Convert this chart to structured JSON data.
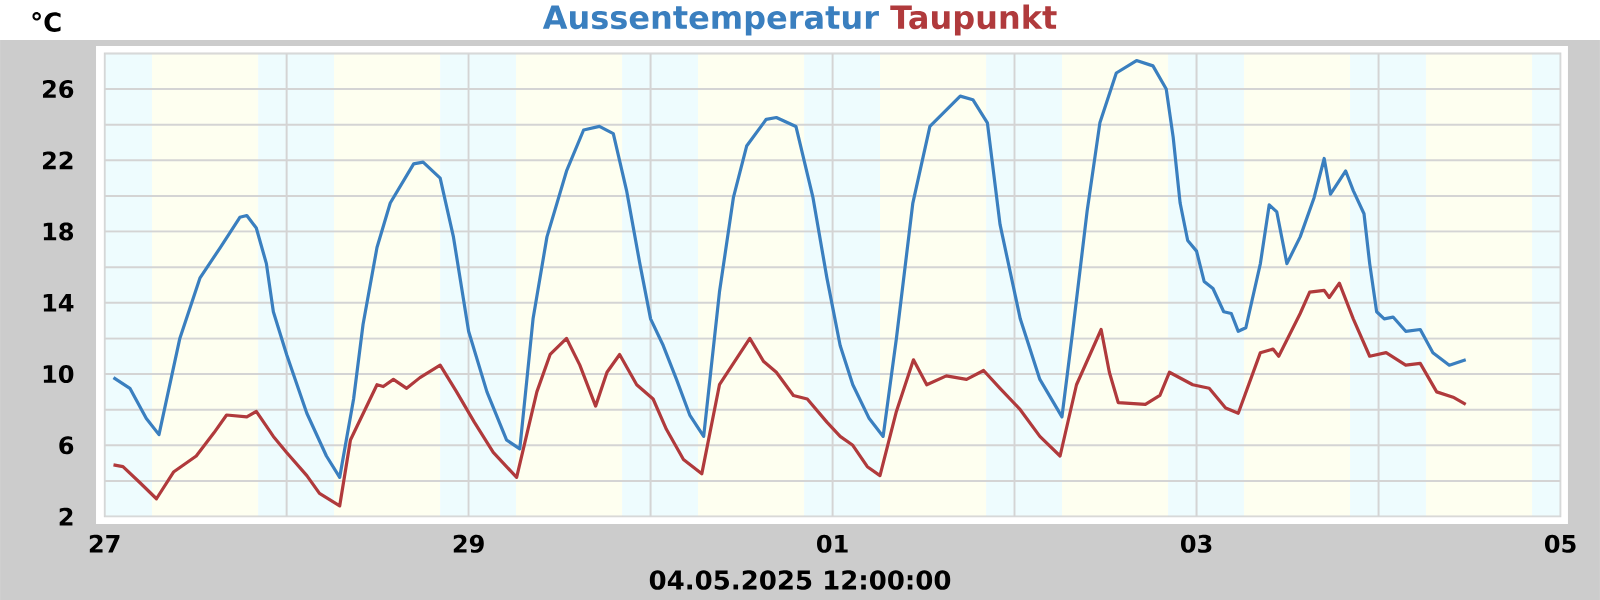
{
  "chart_data": {
    "type": "line",
    "ylabel": "°C",
    "annotations": [
      "04.05.2025 12:00:00"
    ],
    "xlim": [
      "2025-04-27",
      "2025-05-05"
    ],
    "xticks": [
      {
        "value": "2025-04-27",
        "label": "27"
      },
      {
        "value": "2025-04-28",
        "label": null
      },
      {
        "value": "2025-04-29",
        "label": "29"
      },
      {
        "value": "2025-04-30",
        "label": null
      },
      {
        "value": "2025-05-01",
        "label": "01"
      },
      {
        "value": "2025-05-02",
        "label": null
      },
      {
        "value": "2025-05-03",
        "label": "03"
      },
      {
        "value": "2025-05-04",
        "label": null
      },
      {
        "value": "2025-05-05",
        "label": "05"
      }
    ],
    "ylim": [
      2,
      28
    ],
    "yticks": [
      2,
      {
        "value": 4,
        "label": null
      },
      6,
      {
        "value": 8,
        "label": null
      },
      10,
      {
        "value": 12,
        "label": null
      },
      14,
      {
        "value": 16,
        "label": null
      },
      18,
      {
        "value": 20,
        "label": null
      },
      22,
      {
        "value": 24,
        "label": null
      },
      26,
      {
        "value": 28,
        "label": null
      }
    ],
    "grid": true,
    "bands": [
      {
        "axis": "x",
        "from": "2025-04-27T00:00",
        "to": "2025-04-27T06:15",
        "color": "#eefcfe"
      },
      {
        "axis": "x",
        "from": "2025-04-27T06:15",
        "to": "2025-04-27T20:15",
        "color": "#fefff0"
      },
      {
        "axis": "x",
        "from": "2025-04-27T20:15",
        "to": "2025-04-28T06:15",
        "color": "#eefcfe"
      },
      {
        "axis": "x",
        "from": "2025-04-28T06:15",
        "to": "2025-04-28T20:15",
        "color": "#fefff0"
      },
      {
        "axis": "x",
        "from": "2025-04-28T20:15",
        "to": "2025-04-29T06:15",
        "color": "#eefcfe"
      },
      {
        "axis": "x",
        "from": "2025-04-29T06:15",
        "to": "2025-04-29T20:15",
        "color": "#fefff0"
      },
      {
        "axis": "x",
        "from": "2025-04-29T20:15",
        "to": "2025-04-30T06:15",
        "color": "#eefcfe"
      },
      {
        "axis": "x",
        "from": "2025-04-30T06:15",
        "to": "2025-04-30T20:15",
        "color": "#fefff0"
      },
      {
        "axis": "x",
        "from": "2025-04-30T20:15",
        "to": "2025-05-01T06:15",
        "color": "#eefcfe"
      },
      {
        "axis": "x",
        "from": "2025-05-01T06:15",
        "to": "2025-05-01T20:15",
        "color": "#fefff0"
      },
      {
        "axis": "x",
        "from": "2025-05-01T20:15",
        "to": "2025-05-02T06:15",
        "color": "#eefcfe"
      },
      {
        "axis": "x",
        "from": "2025-05-02T06:15",
        "to": "2025-05-02T20:15",
        "color": "#fefff0"
      },
      {
        "axis": "x",
        "from": "2025-05-02T20:15",
        "to": "2025-05-03T06:15",
        "color": "#eefcfe"
      },
      {
        "axis": "x",
        "from": "2025-05-03T06:15",
        "to": "2025-05-03T20:15",
        "color": "#fefff0"
      },
      {
        "axis": "x",
        "from": "2025-05-03T20:15",
        "to": "2025-05-04T06:15",
        "color": "#eefcfe"
      },
      {
        "axis": "x",
        "from": "2025-05-04T06:15",
        "to": "2025-05-04T20:15",
        "color": "#fefff0"
      },
      {
        "axis": "x",
        "from": "2025-05-04T20:15",
        "to": "2025-05-05T00:00",
        "color": "#eefcfe"
      }
    ],
    "series": [
      {
        "name": "Aussentemperatur",
        "color": "#3a7fbf",
        "x": [
          "2025-04-27T01:10",
          "2025-04-27T03:20",
          "2025-04-27T05:30",
          "2025-04-27T07:10",
          "2025-04-27T09:55",
          "2025-04-27T12:35",
          "2025-04-27T15:15",
          "2025-04-27T17:50",
          "2025-04-27T18:45",
          "2025-04-27T20:00",
          "2025-04-27T21:20",
          "2025-04-27T22:15",
          "2025-04-28T00:00",
          "2025-04-28T02:40",
          "2025-04-28T05:15",
          "2025-04-28T07:00",
          "2025-04-28T08:50",
          "2025-04-28T10:05",
          "2025-04-28T11:55",
          "2025-04-28T13:40",
          "2025-04-28T16:45",
          "2025-04-28T18:00",
          "2025-04-28T20:15",
          "2025-04-28T22:00",
          "2025-04-29T00:00",
          "2025-04-29T02:25",
          "2025-04-29T05:00",
          "2025-04-29T06:45",
          "2025-04-29T08:30",
          "2025-04-29T10:20",
          "2025-04-29T12:55",
          "2025-04-29T15:10",
          "2025-04-29T17:15",
          "2025-04-29T19:05",
          "2025-04-29T20:50",
          "2025-04-29T22:35",
          "2025-04-30T00:00",
          "2025-04-30T01:40",
          "2025-04-30T03:25",
          "2025-04-30T05:10",
          "2025-04-30T07:00",
          "2025-04-30T09:05",
          "2025-04-30T10:55",
          "2025-04-30T12:40",
          "2025-04-30T15:15",
          "2025-04-30T16:35",
          "2025-04-30T19:10",
          "2025-04-30T21:25",
          "2025-04-30T23:15",
          "2025-05-01T01:00",
          "2025-05-01T02:40",
          "2025-05-01T04:50",
          "2025-05-01T06:40",
          "2025-05-01T08:25",
          "2025-05-01T10:35",
          "2025-05-01T12:50",
          "2025-05-01T16:50",
          "2025-05-01T18:30",
          "2025-05-01T20:25",
          "2025-05-01T22:05",
          "2025-05-02T00:45",
          "2025-05-02T03:20",
          "2025-05-02T06:15",
          "2025-05-02T07:40",
          "2025-05-02T09:35",
          "2025-05-02T11:15",
          "2025-05-02T13:25",
          "2025-05-02T16:05",
          "2025-05-02T18:15",
          "2025-05-02T20:00",
          "2025-05-02T20:55",
          "2025-05-02T21:50",
          "2025-05-02T22:50",
          "2025-05-03T00:00",
          "2025-05-03T01:00",
          "2025-05-03T02:10",
          "2025-05-03T03:35",
          "2025-05-03T04:35",
          "2025-05-03T05:30",
          "2025-05-03T06:30",
          "2025-05-03T08:25",
          "2025-05-03T09:35",
          "2025-05-03T10:35",
          "2025-05-03T11:55",
          "2025-05-03T13:40",
          "2025-05-03T15:30",
          "2025-05-03T16:50",
          "2025-05-03T17:40",
          "2025-05-03T19:40",
          "2025-05-03T20:40",
          "2025-05-03T22:05",
          "2025-05-03T22:50",
          "2025-05-03T23:45",
          "2025-05-04T00:45",
          "2025-05-04T01:55",
          "2025-05-04T03:35",
          "2025-05-04T05:30",
          "2025-05-04T07:10",
          "2025-05-04T09:20",
          "2025-05-04T11:30"
        ],
        "values": [
          9.8,
          9.2,
          7.5,
          6.6,
          12.0,
          15.4,
          17.1,
          18.8,
          18.9,
          18.2,
          16.2,
          13.5,
          11.1,
          7.8,
          5.4,
          4.2,
          8.6,
          12.8,
          17.1,
          19.6,
          21.8,
          21.9,
          21.0,
          17.7,
          12.4,
          9.0,
          6.3,
          5.8,
          13.1,
          17.7,
          21.4,
          23.7,
          23.9,
          23.5,
          20.3,
          16.2,
          13.1,
          11.6,
          9.7,
          7.7,
          6.5,
          14.6,
          19.9,
          22.8,
          24.3,
          24.4,
          23.9,
          19.9,
          15.4,
          11.6,
          9.4,
          7.5,
          6.5,
          12.0,
          19.6,
          23.9,
          25.6,
          25.4,
          24.1,
          18.4,
          13.1,
          9.7,
          7.6,
          12.4,
          19.2,
          24.1,
          26.9,
          27.6,
          27.3,
          26.0,
          23.3,
          19.6,
          17.5,
          16.9,
          15.2,
          14.8,
          13.5,
          13.4,
          12.4,
          12.6,
          16.2,
          19.5,
          19.1,
          16.2,
          17.7,
          19.9,
          22.1,
          20.1,
          21.4,
          20.3,
          19.0,
          16.2,
          13.5,
          13.1,
          13.2,
          12.4,
          12.5,
          11.2,
          10.5,
          10.8
        ]
      },
      {
        "name": "Taupunkt",
        "color": "#b03a3c",
        "x": [
          "2025-04-27T01:10",
          "2025-04-27T02:25",
          "2025-04-27T04:40",
          "2025-04-27T06:50",
          "2025-04-27T09:05",
          "2025-04-27T12:05",
          "2025-04-27T14:25",
          "2025-04-27T16:05",
          "2025-04-27T18:45",
          "2025-04-27T20:00",
          "2025-04-27T22:15",
          "2025-04-28T00:00",
          "2025-04-28T02:40",
          "2025-04-28T04:20",
          "2025-04-28T07:00",
          "2025-04-28T08:25",
          "2025-04-28T11:55",
          "2025-04-28T12:45",
          "2025-04-28T14:05",
          "2025-04-28T15:50",
          "2025-04-28T17:35",
          "2025-04-28T20:15",
          "2025-04-28T22:25",
          "2025-04-29T00:45",
          "2025-04-29T03:15",
          "2025-04-29T06:20",
          "2025-04-29T09:00",
          "2025-04-29T10:45",
          "2025-04-29T12:55",
          "2025-04-29T14:40",
          "2025-04-29T16:45",
          "2025-04-29T18:15",
          "2025-04-29T19:55",
          "2025-04-29T22:10",
          "2025-04-30T00:20",
          "2025-04-30T02:05",
          "2025-04-30T04:20",
          "2025-04-30T06:45",
          "2025-04-30T09:05",
          "2025-04-30T13:05",
          "2025-04-30T14:55",
          "2025-04-30T16:35",
          "2025-04-30T18:50",
          "2025-04-30T20:40",
          "2025-04-30T23:15",
          "2025-05-01T01:00",
          "2025-05-01T02:40",
          "2025-05-01T04:35",
          "2025-05-01T06:15",
          "2025-05-01T08:25",
          "2025-05-01T10:40",
          "2025-05-01T12:25",
          "2025-05-01T15:00",
          "2025-05-01T17:40",
          "2025-05-01T19:55",
          "2025-05-01T22:05",
          "2025-05-02T00:45",
          "2025-05-02T03:20",
          "2025-05-02T06:00",
          "2025-05-02T08:10",
          "2025-05-02T11:25",
          "2025-05-02T12:30",
          "2025-05-02T13:40",
          "2025-05-02T17:15",
          "2025-05-02T19:10",
          "2025-05-02T20:25",
          "2025-05-02T23:30",
          "2025-05-03T01:40",
          "2025-05-03T03:50",
          "2025-05-03T05:30",
          "2025-05-03T08:25",
          "2025-05-03T10:05",
          "2025-05-03T10:50",
          "2025-05-03T13:40",
          "2025-05-03T14:55",
          "2025-05-03T16:50",
          "2025-05-03T17:30",
          "2025-05-03T18:50",
          "2025-05-03T20:40",
          "2025-05-03T22:50",
          "2025-05-04T01:00",
          "2025-05-04T03:35",
          "2025-05-04T05:30",
          "2025-05-04T07:40",
          "2025-05-04T09:50",
          "2025-05-04T11:30"
        ],
        "values": [
          4.9,
          4.8,
          3.9,
          3.0,
          4.5,
          5.4,
          6.7,
          7.7,
          7.6,
          7.9,
          6.5,
          5.6,
          4.3,
          3.3,
          2.6,
          6.3,
          9.4,
          9.3,
          9.7,
          9.2,
          9.8,
          10.5,
          9.0,
          7.3,
          5.6,
          4.2,
          9.0,
          11.1,
          12.0,
          10.5,
          8.2,
          10.1,
          11.1,
          9.4,
          8.6,
          6.9,
          5.2,
          4.4,
          9.4,
          12.0,
          10.7,
          10.1,
          8.8,
          8.6,
          7.3,
          6.5,
          6.0,
          4.8,
          4.3,
          7.9,
          10.8,
          9.4,
          9.9,
          9.7,
          10.2,
          9.2,
          8.0,
          6.5,
          5.4,
          9.4,
          12.5,
          10.1,
          8.4,
          8.3,
          8.8,
          10.1,
          9.4,
          9.2,
          8.1,
          7.8,
          11.2,
          11.4,
          11.0,
          13.4,
          14.6,
          14.7,
          14.3,
          15.1,
          13.1,
          11.0,
          11.2,
          10.5,
          10.6,
          9.0,
          8.7,
          8.3
        ]
      }
    ]
  }
}
